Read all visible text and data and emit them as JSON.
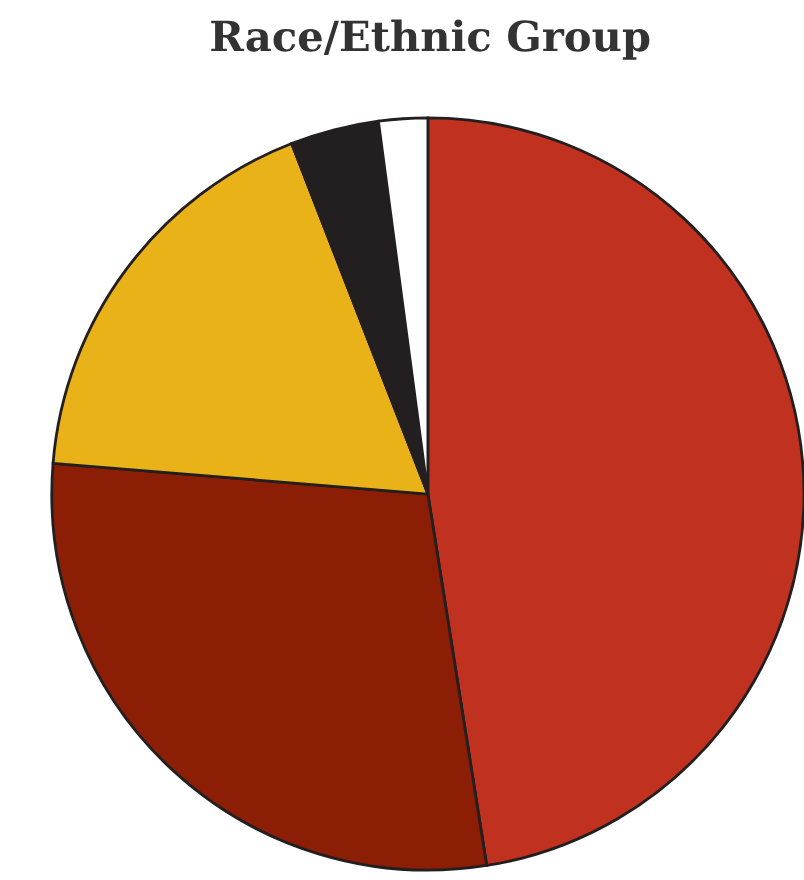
{
  "chart_data": {
    "type": "pie",
    "title": "Race/Ethnic Group",
    "categories": [
      null,
      null,
      null,
      null,
      null
    ],
    "values": [
      47.5,
      28.8,
      17.8,
      3.8,
      2.1
    ],
    "colors": [
      "#c0321f",
      "#8b1e05",
      "#eab219",
      "#231f20",
      "#ffffff"
    ]
  }
}
